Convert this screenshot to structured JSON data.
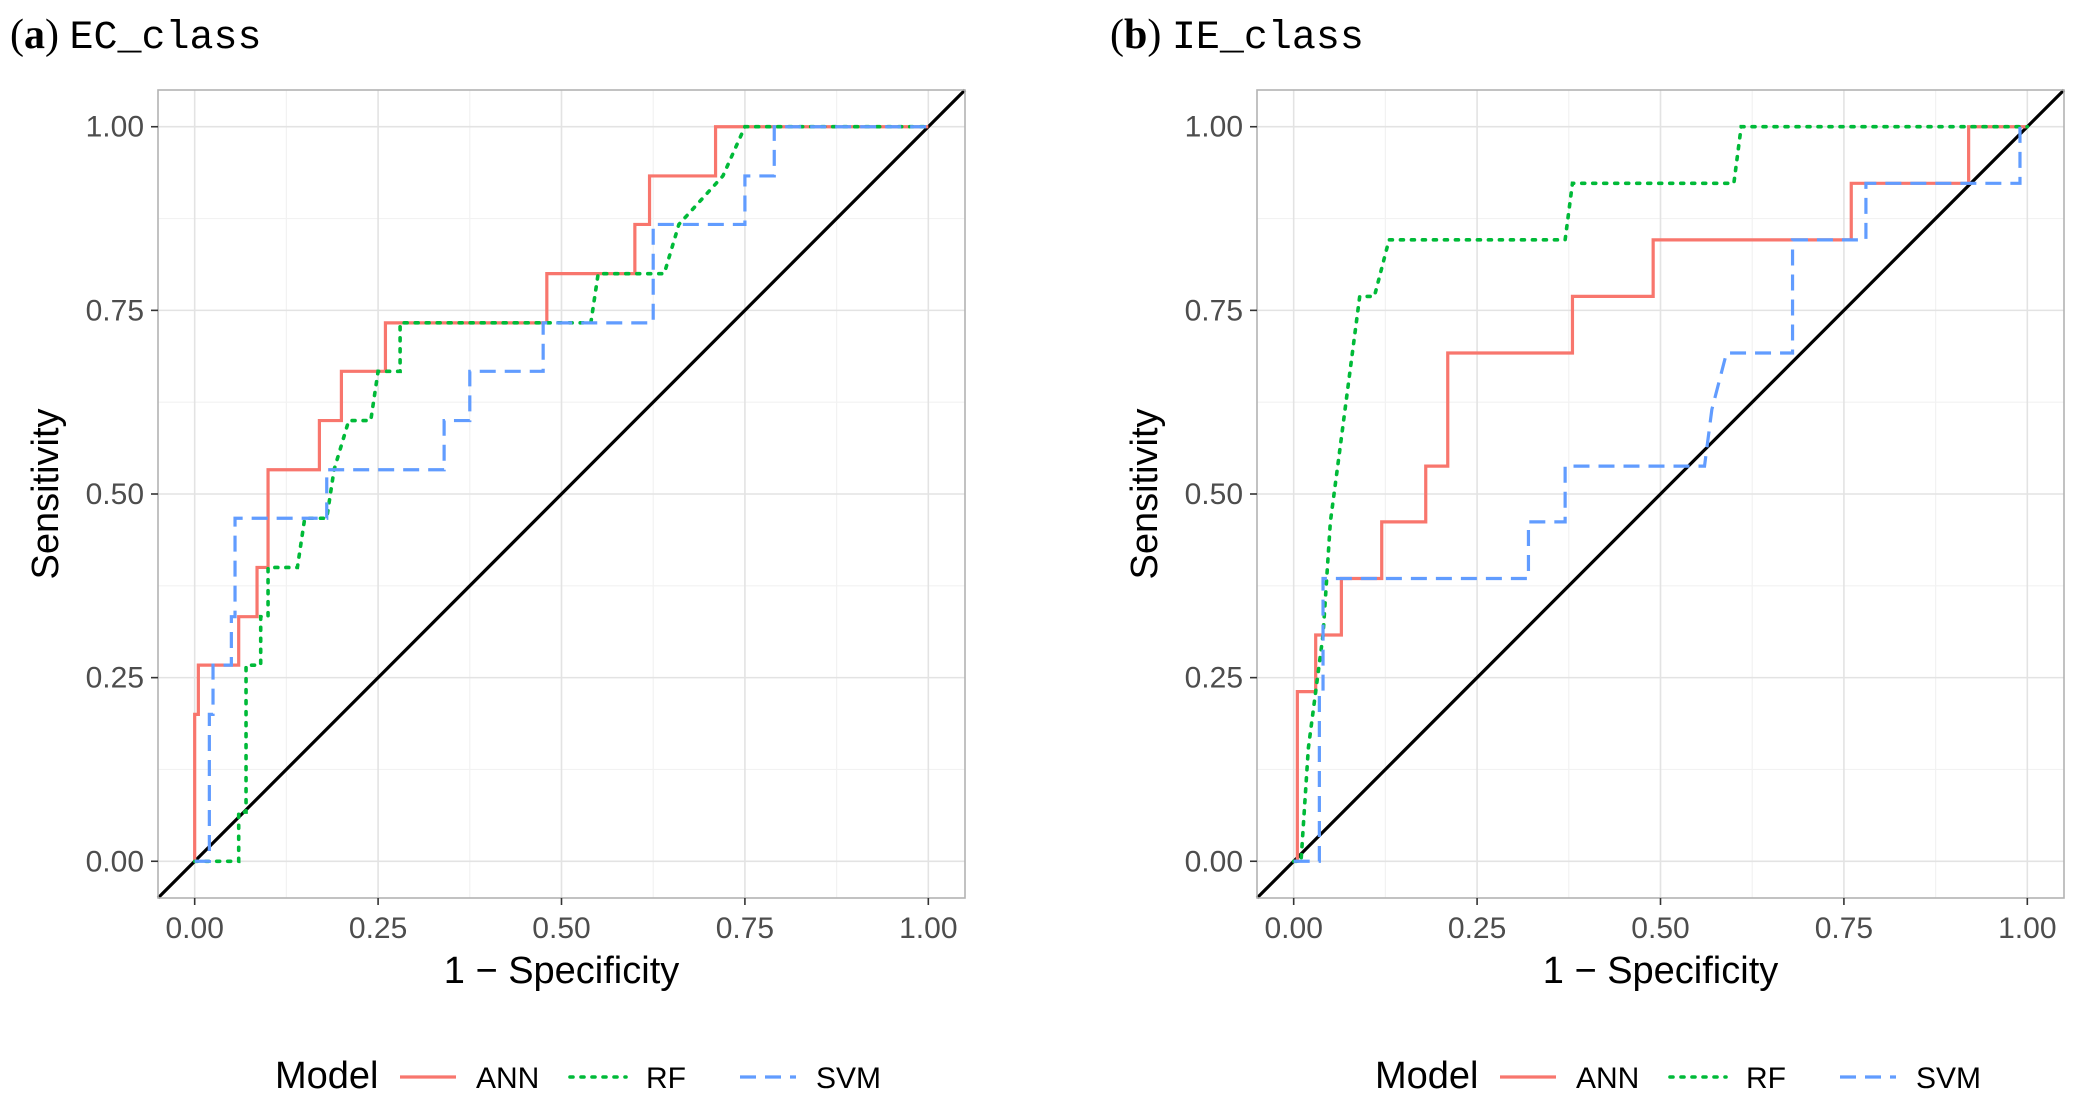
{
  "panels": [
    {
      "tag": "a",
      "name": "EC_class",
      "chart_data": {
        "type": "line",
        "title": "EC_class",
        "xlabel": "1 − Specificity",
        "ylabel": "Sensitivity",
        "xlim": [
          -0.05,
          1.05
        ],
        "ylim": [
          -0.05,
          1.05
        ],
        "xticks": [
          "0.00",
          "0.25",
          "0.50",
          "0.75",
          "1.00"
        ],
        "yticks": [
          "0.00",
          "0.25",
          "0.50",
          "0.75",
          "1.00"
        ],
        "grid": true,
        "diagonal": true,
        "series": [
          {
            "name": "ANN",
            "points": [
              [
                0,
                0
              ],
              [
                0,
                0.2
              ],
              [
                0.005,
                0.2
              ],
              [
                0.005,
                0.267
              ],
              [
                0.06,
                0.267
              ],
              [
                0.06,
                0.333
              ],
              [
                0.085,
                0.333
              ],
              [
                0.085,
                0.4
              ],
              [
                0.1,
                0.4
              ],
              [
                0.1,
                0.533
              ],
              [
                0.17,
                0.533
              ],
              [
                0.17,
                0.6
              ],
              [
                0.2,
                0.6
              ],
              [
                0.2,
                0.667
              ],
              [
                0.26,
                0.667
              ],
              [
                0.26,
                0.733
              ],
              [
                0.48,
                0.733
              ],
              [
                0.48,
                0.8
              ],
              [
                0.6,
                0.8
              ],
              [
                0.6,
                0.867
              ],
              [
                0.62,
                0.867
              ],
              [
                0.62,
                0.933
              ],
              [
                0.71,
                0.933
              ],
              [
                0.71,
                1.0
              ],
              [
                1.0,
                1.0
              ]
            ]
          },
          {
            "name": "RF",
            "points": [
              [
                0,
                0
              ],
              [
                0.06,
                0
              ],
              [
                0.06,
                0.067
              ],
              [
                0.07,
                0.067
              ],
              [
                0.07,
                0.267
              ],
              [
                0.09,
                0.267
              ],
              [
                0.09,
                0.333
              ],
              [
                0.1,
                0.333
              ],
              [
                0.1,
                0.4
              ],
              [
                0.14,
                0.4
              ],
              [
                0.15,
                0.467
              ],
              [
                0.18,
                0.467
              ],
              [
                0.19,
                0.533
              ],
              [
                0.21,
                0.6
              ],
              [
                0.24,
                0.6
              ],
              [
                0.25,
                0.667
              ],
              [
                0.28,
                0.667
              ],
              [
                0.28,
                0.733
              ],
              [
                0.54,
                0.733
              ],
              [
                0.55,
                0.8
              ],
              [
                0.64,
                0.8
              ],
              [
                0.66,
                0.867
              ],
              [
                0.72,
                0.933
              ],
              [
                0.75,
                1.0
              ],
              [
                1.0,
                1.0
              ]
            ]
          },
          {
            "name": "SVM",
            "points": [
              [
                0,
                0
              ],
              [
                0.02,
                0
              ],
              [
                0.02,
                0.2
              ],
              [
                0.025,
                0.2
              ],
              [
                0.025,
                0.267
              ],
              [
                0.05,
                0.267
              ],
              [
                0.05,
                0.333
              ],
              [
                0.055,
                0.333
              ],
              [
                0.055,
                0.467
              ],
              [
                0.18,
                0.467
              ],
              [
                0.18,
                0.533
              ],
              [
                0.34,
                0.533
              ],
              [
                0.34,
                0.6
              ],
              [
                0.375,
                0.6
              ],
              [
                0.375,
                0.667
              ],
              [
                0.475,
                0.667
              ],
              [
                0.475,
                0.733
              ],
              [
                0.625,
                0.733
              ],
              [
                0.625,
                0.867
              ],
              [
                0.75,
                0.867
              ],
              [
                0.75,
                0.933
              ],
              [
                0.79,
                0.933
              ],
              [
                0.79,
                1.0
              ],
              [
                1.0,
                1.0
              ]
            ]
          }
        ]
      }
    },
    {
      "tag": "b",
      "name": "IE_class",
      "chart_data": {
        "type": "line",
        "title": "IE_class",
        "xlabel": "1 − Specificity",
        "ylabel": "Sensitivity",
        "xlim": [
          -0.05,
          1.05
        ],
        "ylim": [
          -0.05,
          1.05
        ],
        "xticks": [
          "0.00",
          "0.25",
          "0.50",
          "0.75",
          "1.00"
        ],
        "yticks": [
          "0.00",
          "0.25",
          "0.50",
          "0.75",
          "1.00"
        ],
        "grid": true,
        "diagonal": true,
        "series": [
          {
            "name": "ANN",
            "points": [
              [
                0,
                0
              ],
              [
                0.005,
                0
              ],
              [
                0.005,
                0.231
              ],
              [
                0.03,
                0.231
              ],
              [
                0.03,
                0.308
              ],
              [
                0.065,
                0.308
              ],
              [
                0.065,
                0.385
              ],
              [
                0.12,
                0.385
              ],
              [
                0.12,
                0.462
              ],
              [
                0.18,
                0.462
              ],
              [
                0.18,
                0.538
              ],
              [
                0.21,
                0.538
              ],
              [
                0.21,
                0.692
              ],
              [
                0.38,
                0.692
              ],
              [
                0.38,
                0.769
              ],
              [
                0.49,
                0.769
              ],
              [
                0.49,
                0.846
              ],
              [
                0.76,
                0.846
              ],
              [
                0.76,
                0.923
              ],
              [
                0.92,
                0.923
              ],
              [
                0.92,
                1.0
              ],
              [
                1.0,
                1.0
              ]
            ]
          },
          {
            "name": "RF",
            "points": [
              [
                0,
                0
              ],
              [
                0.01,
                0
              ],
              [
                0.015,
                0.077
              ],
              [
                0.02,
                0.154
              ],
              [
                0.03,
                0.231
              ],
              [
                0.04,
                0.308
              ],
              [
                0.05,
                0.462
              ],
              [
                0.06,
                0.538
              ],
              [
                0.07,
                0.615
              ],
              [
                0.08,
                0.692
              ],
              [
                0.09,
                0.769
              ],
              [
                0.11,
                0.769
              ],
              [
                0.13,
                0.846
              ],
              [
                0.37,
                0.846
              ],
              [
                0.38,
                0.923
              ],
              [
                0.6,
                0.923
              ],
              [
                0.61,
                1.0
              ],
              [
                1.0,
                1.0
              ]
            ]
          },
          {
            "name": "SVM",
            "points": [
              [
                0,
                0
              ],
              [
                0.035,
                0
              ],
              [
                0.035,
                0.231
              ],
              [
                0.04,
                0.231
              ],
              [
                0.04,
                0.385
              ],
              [
                0.32,
                0.385
              ],
              [
                0.32,
                0.462
              ],
              [
                0.37,
                0.462
              ],
              [
                0.37,
                0.538
              ],
              [
                0.56,
                0.538
              ],
              [
                0.57,
                0.615
              ],
              [
                0.59,
                0.692
              ],
              [
                0.68,
                0.692
              ],
              [
                0.68,
                0.846
              ],
              [
                0.78,
                0.846
              ],
              [
                0.78,
                0.923
              ],
              [
                0.99,
                0.923
              ],
              [
                0.99,
                1.0
              ],
              [
                1.0,
                1.0
              ]
            ]
          }
        ]
      }
    }
  ],
  "legend": {
    "title": "Model",
    "items": [
      {
        "label": "ANN",
        "color": "#F8766D",
        "dash": "solid"
      },
      {
        "label": "RF",
        "color": "#00BA38",
        "dash": "dotted"
      },
      {
        "label": "SVM",
        "color": "#619CFF",
        "dash": "dashed"
      }
    ]
  },
  "colors": {
    "grid_major": "#e3e3e3",
    "grid_minor": "#f2f2f2",
    "panel_border": "#b3b3b3",
    "diagonal": "#000000"
  }
}
